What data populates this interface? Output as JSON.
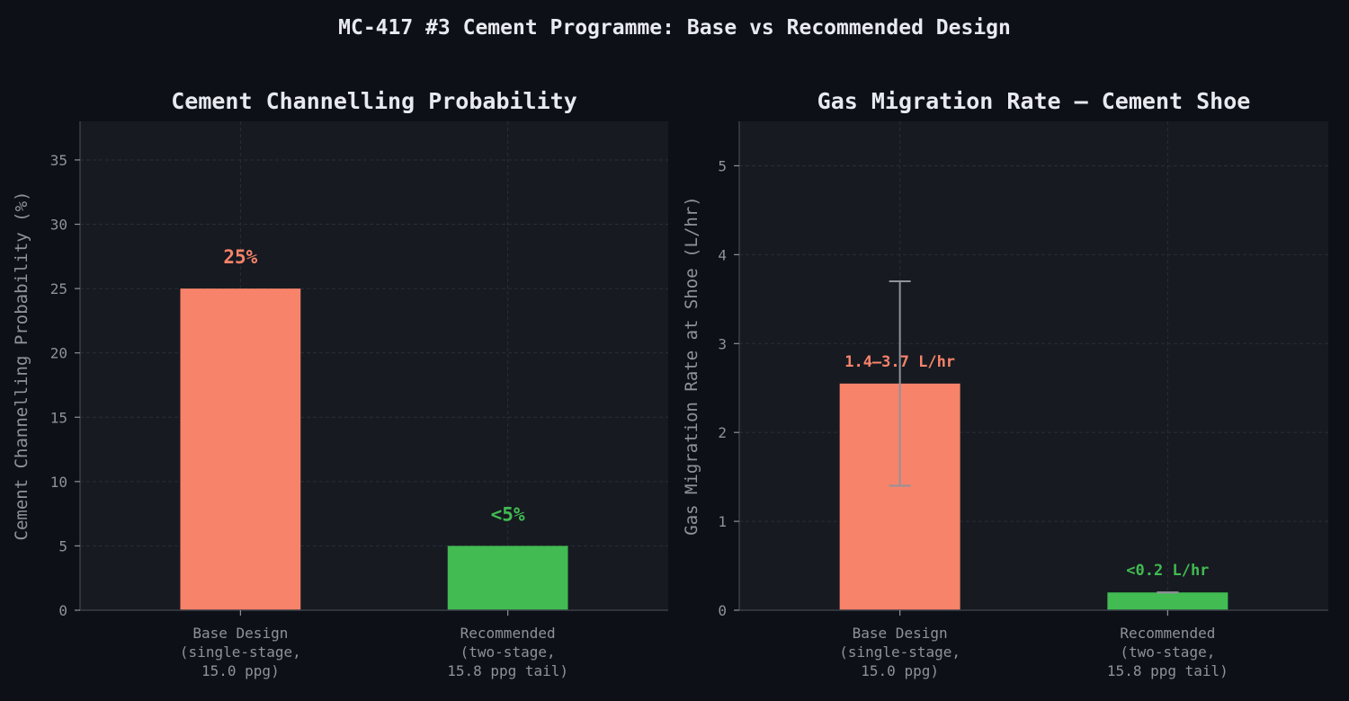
{
  "suptitle": "MC-417 #3 Cement Programme: Base vs Recommended Design",
  "colors": {
    "figure_bg": "#0d1017",
    "axes_bg": "#171a21",
    "base": "#f7836a",
    "recommended": "#41bb52",
    "text": "#e8eaf0",
    "tick": "#8e929b",
    "errorbar": "#8f939b"
  },
  "chart_data": [
    {
      "type": "bar",
      "title": "Cement Channelling Probability",
      "ylabel": "Cement Channelling Probability (%)",
      "xlabel": "",
      "categories": [
        [
          "Base Design",
          "(single-stage,",
          "15.0 ppg)"
        ],
        [
          "Recommended",
          "(two-stage,",
          "15.8 ppg tail)"
        ]
      ],
      "values": [
        25,
        5
      ],
      "data_labels": [
        "25%",
        "<5%"
      ],
      "ylim": [
        0,
        38
      ],
      "yticks": [
        0,
        5,
        10,
        15,
        20,
        25,
        30,
        35
      ],
      "grid": true
    },
    {
      "type": "bar",
      "title": "Gas Migration Rate — Cement Shoe",
      "ylabel": "Gas Migration Rate at Shoe (L/hr)",
      "xlabel": "",
      "categories": [
        [
          "Base Design",
          "(single-stage,",
          "15.0 ppg)"
        ],
        [
          "Recommended",
          "(two-stage,",
          "15.8 ppg tail)"
        ]
      ],
      "values": [
        2.55,
        0.2
      ],
      "error_ranges": [
        [
          1.4,
          3.7
        ],
        [
          0.2,
          0.2
        ]
      ],
      "data_labels": [
        "1.4–3.7 L/hr",
        "<0.2 L/hr"
      ],
      "ylim": [
        0,
        5.5
      ],
      "yticks": [
        0,
        1,
        2,
        3,
        4,
        5
      ],
      "grid": true
    }
  ]
}
